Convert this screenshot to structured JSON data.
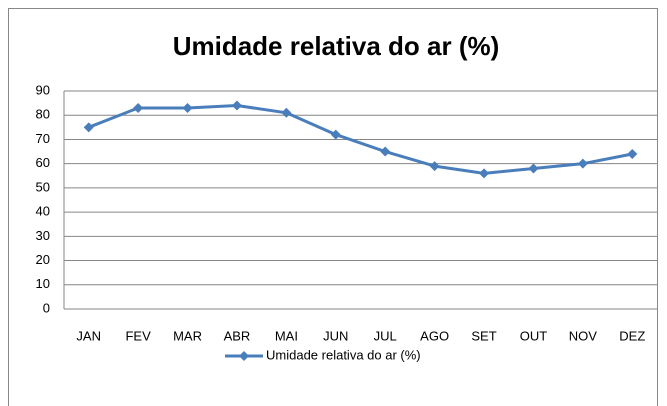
{
  "chart_data": {
    "type": "line",
    "title": "Umidade relativa do ar (%)",
    "categories": [
      "JAN",
      "FEV",
      "MAR",
      "ABR",
      "MAI",
      "JUN",
      "JUL",
      "AGO",
      "SET",
      "OUT",
      "NOV",
      "DEZ"
    ],
    "series": [
      {
        "name": "Umidade relativa do ar (%)",
        "color": "#4a7ebb",
        "values": [
          75,
          83,
          83,
          84,
          81,
          72,
          65,
          59,
          56,
          58,
          60,
          64
        ]
      }
    ],
    "ylim": [
      0,
      90
    ],
    "yticks": [
      0,
      10,
      20,
      30,
      40,
      50,
      60,
      70,
      80,
      90
    ],
    "grid": true,
    "legend": "bottom"
  }
}
